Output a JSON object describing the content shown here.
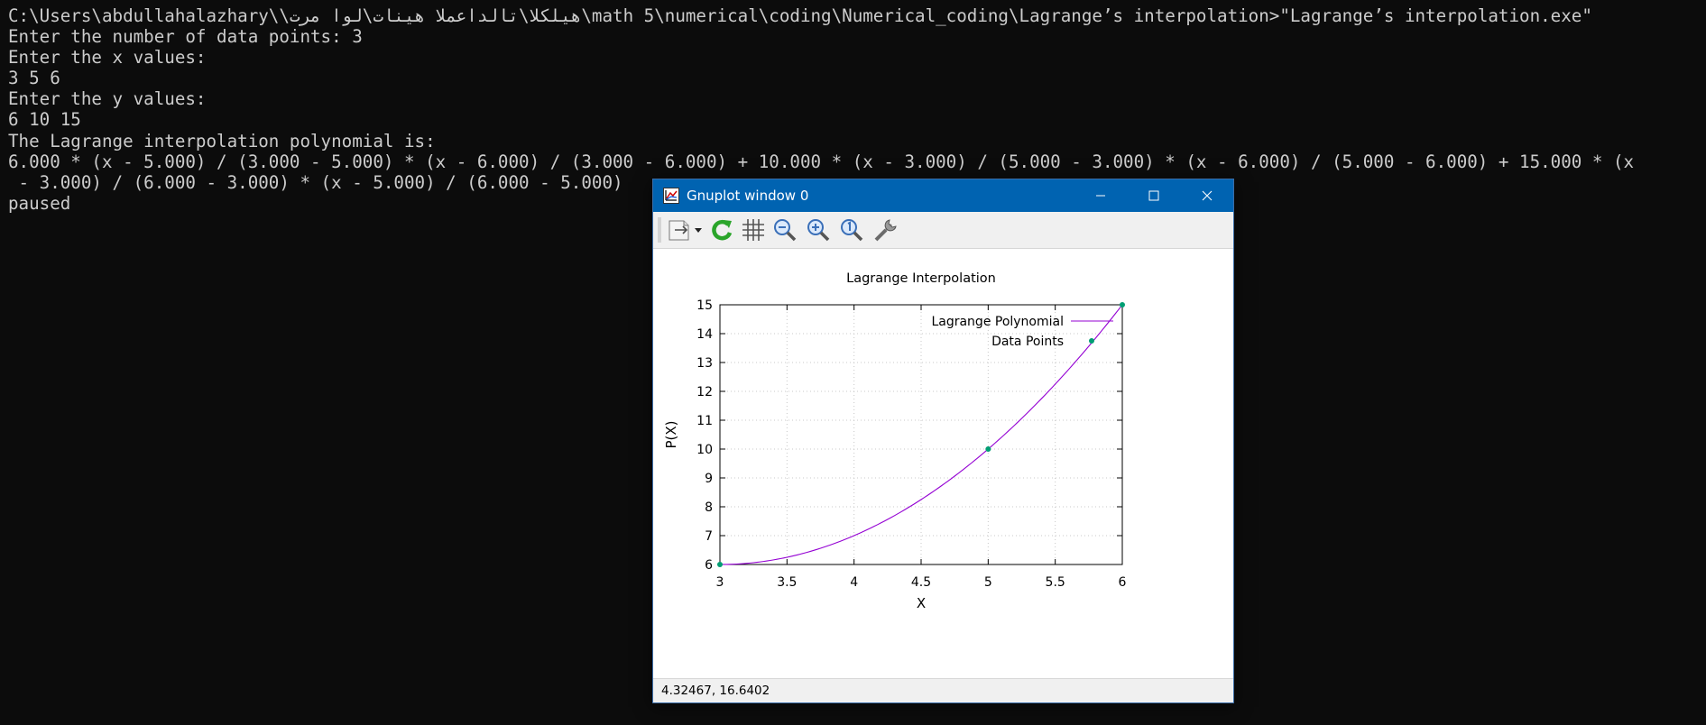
{
  "console": {
    "lines": [
      "C:\\Users\\abdullahalazhary\\\\هيلكلا\\تالداعملا هينات\\لوا مرت\\math 5\\numerical\\coding\\Numerical_coding\\Lagrange’s interpolation>\"Lagrange’s interpolation.exe\"",
      "Enter the number of data points: 3",
      "Enter the x values:",
      "3 5 6",
      "Enter the y values:",
      "6 10 15",
      "The Lagrange interpolation polynomial is:",
      "6.000 * (x - 5.000) / (3.000 - 5.000) * (x - 6.000) / (3.000 - 6.000) + 10.000 * (x - 3.000) / (5.000 - 3.000) * (x - 6.000) / (5.000 - 6.000) + 15.000 * (x",
      " - 3.000) / (6.000 - 3.000) * (x - 5.000) / (6.000 - 5.000)",
      "paused"
    ]
  },
  "window": {
    "title": "Gnuplot window 0",
    "status_text": "4.32467,  16.6402",
    "toolbar_icons": [
      "copy-export-icon",
      "dropdown-arrow-icon",
      "replot-icon",
      "grid-icon",
      "zoom-out-icon",
      "zoom-in-icon",
      "zoom-reset-icon",
      "settings-wrench-icon"
    ]
  },
  "chart_data": {
    "type": "line",
    "title": "Lagrange Interpolation",
    "xlabel": "X",
    "ylabel": "P(X)",
    "xlim": [
      3,
      6
    ],
    "ylim": [
      6,
      15
    ],
    "xticks": [
      "3",
      "3.5",
      "4",
      "4.5",
      "5",
      "5.5",
      "6"
    ],
    "yticks": [
      "6",
      "7",
      "8",
      "9",
      "10",
      "11",
      "12",
      "13",
      "14",
      "15"
    ],
    "grid": true,
    "legend_position": "top-right",
    "series": [
      {
        "name": "Lagrange Polynomial",
        "style": "line",
        "color": "#9400d3",
        "polynomial": "6*(x-5)/(3-5)*(x-6)/(3-6) + 10*(x-3)/(5-3)*(x-6)/(5-6) + 15*(x-3)/(6-3)*(x-5)/(6-5)"
      },
      {
        "name": "Data Points",
        "style": "points",
        "color": "#009e73",
        "x": [
          3,
          5,
          6
        ],
        "y": [
          6,
          10,
          15
        ]
      }
    ]
  }
}
